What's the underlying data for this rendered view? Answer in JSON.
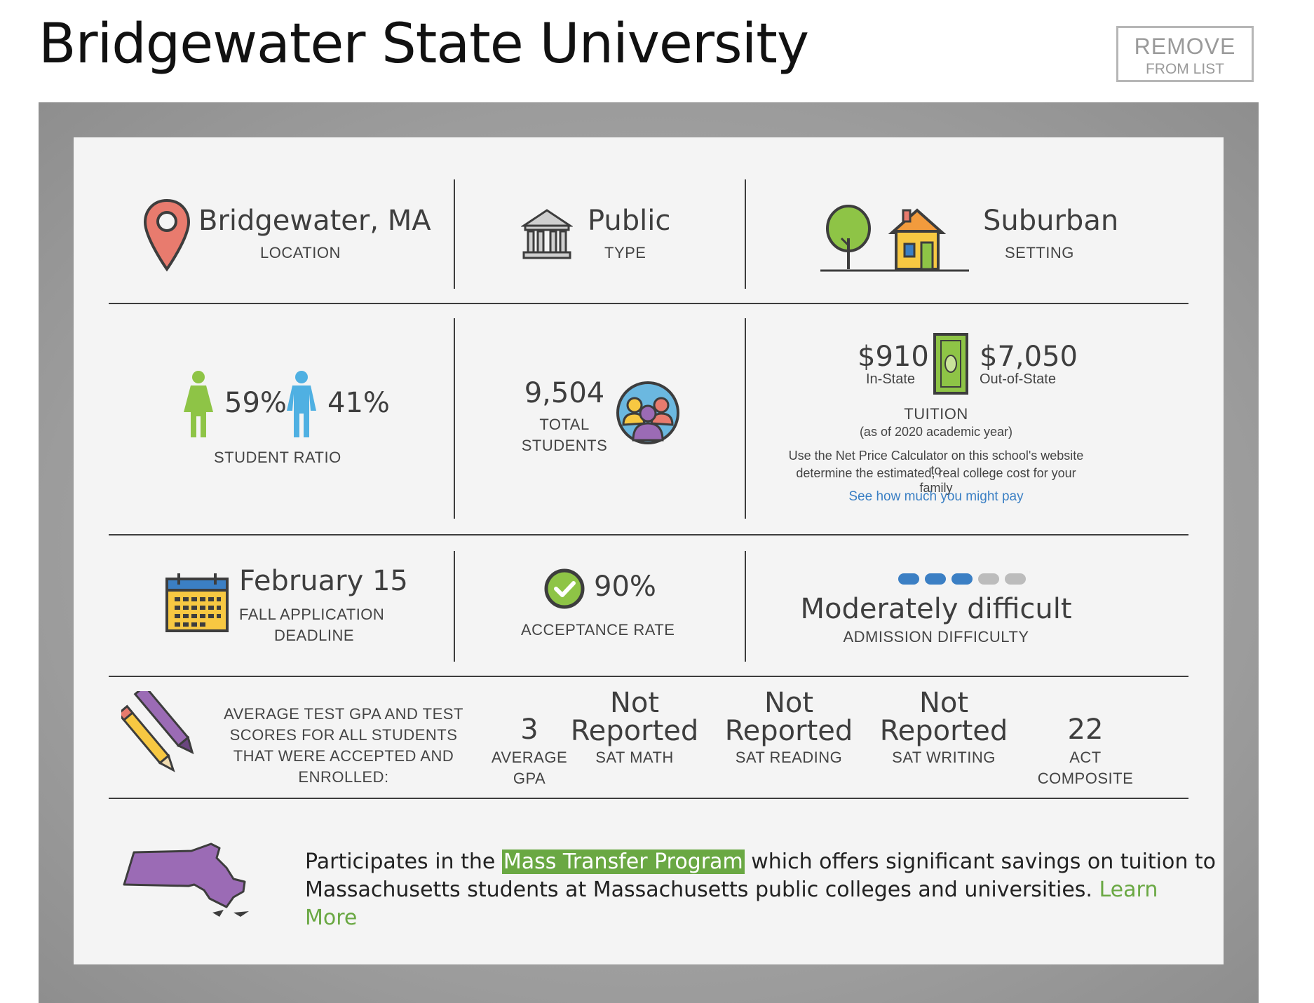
{
  "page_title": "Bridgewater State University",
  "remove_button": {
    "line1": "REMOVE",
    "line2": "FROM LIST"
  },
  "location": {
    "value": "Bridgewater, MA",
    "label": "LOCATION"
  },
  "type": {
    "value": "Public",
    "label": "TYPE"
  },
  "setting": {
    "value": "Suburban",
    "label": "SETTING"
  },
  "student_ratio": {
    "female": "59%",
    "male": "41%",
    "label": "STUDENT RATIO"
  },
  "students": {
    "value": "9,504",
    "label_line1": "TOTAL",
    "label_line2": "STUDENTS"
  },
  "tuition": {
    "in_state_value": "$910",
    "in_state_label": "In-State",
    "out_state_value": "$7,050",
    "out_state_label": "Out-of-State",
    "label": "TUITION",
    "as_of": "(as of 2020 academic year)",
    "note_line1": "Use the Net Price Calculator on this school's website to",
    "note_line2": "determine the estimated, real college cost for your family",
    "link": "See how much you might pay"
  },
  "deadline": {
    "value": "February 15",
    "label_line1": "FALL APPLICATION",
    "label_line2": "DEADLINE"
  },
  "acceptance": {
    "value": "90%",
    "label": "ACCEPTANCE RATE"
  },
  "difficulty": {
    "value": "Moderately difficult",
    "label": "ADMISSION DIFFICULTY",
    "level": 3,
    "max": 5,
    "active_color": "#3b7fc4",
    "inactive_color": "#bcbcbc"
  },
  "scores": {
    "intro": [
      "AVERAGE TEST GPA AND TEST",
      "SCORES FOR ALL STUDENTS",
      "THAT WERE ACCEPTED AND",
      "ENROLLED:"
    ],
    "gpa": {
      "value": "3",
      "label_line1": "AVERAGE",
      "label_line2": "GPA"
    },
    "sat_math": {
      "value_line1": "Not",
      "value_line2": "Reported",
      "label": "SAT MATH"
    },
    "sat_reading": {
      "value_line1": "Not",
      "value_line2": "Reported",
      "label": "SAT READING"
    },
    "sat_writing": {
      "value_line1": "Not",
      "value_line2": "Reported",
      "label": "SAT WRITING"
    },
    "act": {
      "value": "22",
      "label_line1": "ACT",
      "label_line2": "COMPOSITE"
    }
  },
  "program": {
    "before": "Participates in the ",
    "link": "Mass Transfer Program",
    "after_line1": " which offers significant savings on tuition to",
    "line2": "Massachusetts students at Massachusetts public colleges and universities. ",
    "learn_more": "Learn More"
  },
  "colors": {
    "accent_green": "#6aa843",
    "link_blue": "#3a7fc4",
    "divider": "#3d3d3d"
  },
  "icons": [
    "map-pin-icon",
    "building-icon",
    "tree-house-icon",
    "female-icon",
    "male-icon",
    "students-group-icon",
    "money-icon",
    "calendar-icon",
    "check-circle-icon",
    "difficulty-bar",
    "pencils-icon",
    "massachusetts-map-icon"
  ]
}
